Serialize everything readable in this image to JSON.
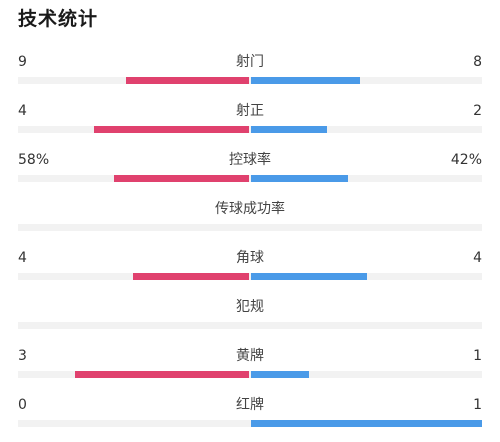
{
  "header": {
    "title": "技术统计"
  },
  "colors": {
    "home": "#e0416e",
    "away": "#4a9ae8",
    "track": "#f2f2f2"
  },
  "stats": [
    {
      "name": "射门",
      "left": "9",
      "right": "8",
      "left_fraction": 0.53,
      "right_fraction": 0.47
    },
    {
      "name": "射正",
      "left": "4",
      "right": "2",
      "left_fraction": 0.67,
      "right_fraction": 0.33
    },
    {
      "name": "控球率",
      "left": "58%",
      "right": "42%",
      "left_fraction": 0.58,
      "right_fraction": 0.42
    },
    {
      "name": "传球成功率",
      "left": "",
      "right": "",
      "left_fraction": 0,
      "right_fraction": 0
    },
    {
      "name": "角球",
      "left": "4",
      "right": "4",
      "left_fraction": 0.5,
      "right_fraction": 0.5
    },
    {
      "name": "犯规",
      "left": "",
      "right": "",
      "left_fraction": 0,
      "right_fraction": 0
    },
    {
      "name": "黄牌",
      "left": "3",
      "right": "1",
      "left_fraction": 0.75,
      "right_fraction": 0.25
    },
    {
      "name": "红牌",
      "left": "0",
      "right": "1",
      "left_fraction": 0,
      "right_fraction": 1
    }
  ]
}
